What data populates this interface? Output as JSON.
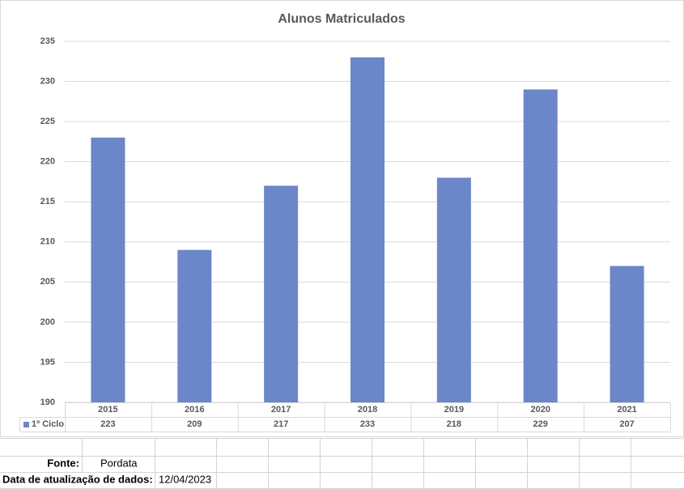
{
  "chart_data": {
    "type": "bar",
    "title": "Alunos  Matriculados",
    "categories": [
      "2015",
      "2016",
      "2017",
      "2018",
      "2019",
      "2020",
      "2021"
    ],
    "series": [
      {
        "name": "1º Ciclo",
        "color": "#6b87c9",
        "values": [
          223,
          209,
          217,
          233,
          218,
          229,
          207
        ]
      }
    ],
    "ylim": [
      190,
      235
    ],
    "yticks": [
      190,
      195,
      200,
      205,
      210,
      215,
      220,
      225,
      230,
      235
    ],
    "grid": true
  },
  "sheet": {
    "source_label": "Fonte:",
    "source": "Pordata",
    "date_label": "Data de atualização de dados:",
    "date": "12/04/2023"
  }
}
